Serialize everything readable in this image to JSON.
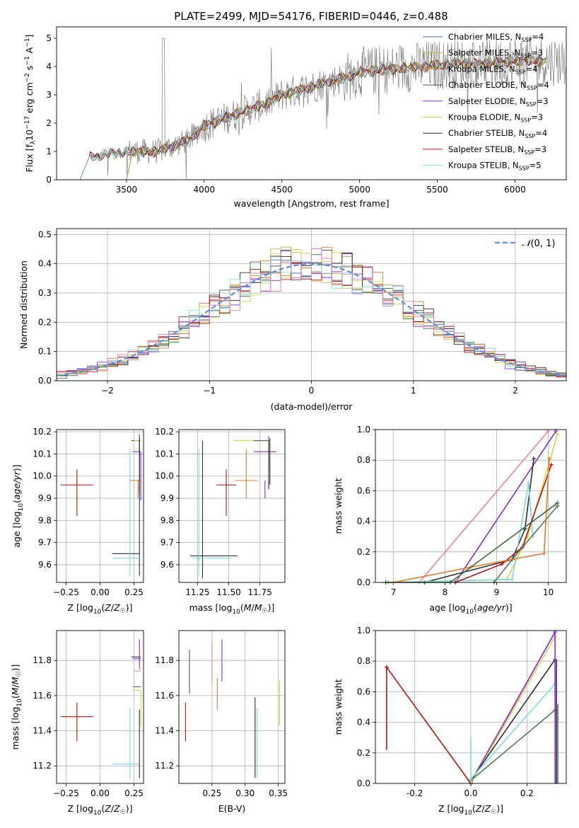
{
  "figure": {
    "title": "PLATE=2499, MJD=54176, FIBERID=0446, z=0.488"
  },
  "palette": {
    "c0": "#4466dd",
    "c1": "#bbbb33",
    "c2": "#e07a2a",
    "c3": "#3a6e3a",
    "c4": "#8a2be2",
    "c5": "#d0d840",
    "c6": "#303030",
    "c7": "#bb1111",
    "c8": "#7fd8e0",
    "pink": "#e87fb0",
    "olive": "#557755"
  },
  "chart_data": [
    {
      "id": "spectrum",
      "type": "line",
      "xlabel": "wavelength [Angstrom, rest frame]",
      "ylabel": "Flux [f_λ 10^-17 erg cm^-2 s^-1 A^-1]",
      "xlim": [
        3050,
        6330
      ],
      "ylim": [
        0,
        5.4
      ],
      "xticks": [
        3500,
        4000,
        4500,
        5000,
        5500,
        6000
      ],
      "yticks": [
        0,
        1,
        2,
        3,
        4,
        5
      ],
      "grid": false,
      "legend_position": "upper-right",
      "data_anchor": {
        "x": [
          3200,
          3260,
          3500,
          3700,
          3900,
          4000,
          4200,
          4400,
          4500,
          4700,
          4900,
          5000,
          5200,
          5400,
          5600,
          5800,
          6000,
          6200
        ],
        "y": [
          0.0,
          0.8,
          1.0,
          1.0,
          1.4,
          1.9,
          2.3,
          2.7,
          3.0,
          3.3,
          3.6,
          3.8,
          3.9,
          4.0,
          4.1,
          4.1,
          4.2,
          4.2
        ]
      },
      "series": [
        {
          "name": "Chabrier MILES, N_SSP=4",
          "label_main": "Chabrier MILES, N",
          "label_sub": "SSP",
          "label_tail": "=4",
          "color": "#4466dd"
        },
        {
          "name": "Salpeter MILES, N_SSP=3",
          "label_main": "Salpeter MILES, N",
          "label_sub": "SSP",
          "label_tail": "=3",
          "color": "#bbbb33"
        },
        {
          "name": "Kroupa MILES, N_SSP=4",
          "label_main": "Kroupa MILES, N",
          "label_sub": "SSP",
          "label_tail": "=4",
          "color": "#e07a2a"
        },
        {
          "name": "Chabrier ELODIE, N_SSP=4",
          "label_main": "Chabrier ELODIE, N",
          "label_sub": "SSP",
          "label_tail": "=4",
          "color": "#3a6e3a"
        },
        {
          "name": "Salpeter ELODIE, N_SSP=3",
          "label_main": "Salpeter ELODIE, N",
          "label_sub": "SSP",
          "label_tail": "=3",
          "color": "#8a2be2"
        },
        {
          "name": "Kroupa ELODIE, N_SSP=3",
          "label_main": "Kroupa ELODIE, N",
          "label_sub": "SSP",
          "label_tail": "=3",
          "color": "#d0d840"
        },
        {
          "name": "Chabrier STELIB, N_SSP=4",
          "label_main": "Chabrier STELIB, N",
          "label_sub": "SSP",
          "label_tail": "=4",
          "color": "#303030"
        },
        {
          "name": "Salpeter STELIB, N_SSP=3",
          "label_main": "Salpeter STELIB, N",
          "label_sub": "SSP",
          "label_tail": "=3",
          "color": "#bb1111"
        },
        {
          "name": "Kroupa STELIB, N_SSP=5",
          "label_main": "Kroupa STELIB, N",
          "label_sub": "SSP",
          "label_tail": "=5",
          "color": "#7fd8e0"
        }
      ]
    },
    {
      "id": "residuals",
      "type": "line",
      "xlabel": "(data-model)/error",
      "ylabel": "Normed distribution",
      "xlim": [
        -2.5,
        2.5
      ],
      "ylim": [
        0,
        0.52
      ],
      "xticks": [
        -2,
        -1,
        0,
        1,
        2
      ],
      "yticks": [
        0.0,
        0.1,
        0.2,
        0.3,
        0.4,
        0.5
      ],
      "grid": true,
      "legend_position": "upper-right",
      "legend_label": "N(0,1)",
      "legend_label_main": "𝒩",
      "legend_label_tail": "(0, 1)",
      "reference_curve": "normal",
      "bin_width": 0.1
    },
    {
      "id": "age_vs_Z",
      "type": "scatter",
      "xlabel": "Z [log10(Z/Z☉)]",
      "ylabel": "age [log10(age/yr)]",
      "xlim": [
        -0.32,
        0.32
      ],
      "ylim": [
        9.52,
        10.21
      ],
      "xticks": [
        -0.25,
        0.0,
        0.25
      ],
      "yticks": [
        9.6,
        9.7,
        9.8,
        9.9,
        10.0,
        10.1,
        10.2
      ],
      "grid": true,
      "points": [
        {
          "x": -0.17,
          "y": 9.96,
          "xerr": [
            0.12,
            0.12
          ],
          "yerr": [
            0.14,
            0.07
          ],
          "color": "#bb1111"
        },
        {
          "x": 0.27,
          "y": 10.16,
          "xerr": [
            0.04,
            0.03
          ],
          "yerr": [
            0.0,
            0.0
          ],
          "color": "#3a6e3a"
        },
        {
          "x": 0.28,
          "y": 10.16,
          "xerr": [
            0.03,
            0.02
          ],
          "yerr": [
            0.0,
            0.0
          ],
          "color": "#d0d840"
        },
        {
          "x": 0.29,
          "y": 10.11,
          "xerr": [
            0.05,
            0.01
          ],
          "yerr": [
            0.06,
            0.07
          ],
          "color": "#8a2be2"
        },
        {
          "x": 0.29,
          "y": 10.13,
          "xerr": [
            0.0,
            0.0
          ],
          "yerr": [
            0.2,
            0.06
          ],
          "color": "#3a6e3a"
        },
        {
          "x": 0.28,
          "y": 9.98,
          "xerr": [
            0.06,
            0.02
          ],
          "yerr": [
            0.08,
            0.0
          ],
          "color": "#e07a2a"
        },
        {
          "x": 0.3,
          "y": 10.0,
          "xerr": [
            0.0,
            0.0
          ],
          "yerr": [
            0.11,
            0.11
          ],
          "color": "#8a2be2"
        },
        {
          "x": 0.29,
          "y": 9.65,
          "xerr": [
            0.2,
            0.0
          ],
          "yerr": [
            0.1,
            0.52
          ],
          "color": "#303030"
        },
        {
          "x": 0.22,
          "y": 9.63,
          "xerr": [
            0.13,
            0.07
          ],
          "yerr": [
            0.08,
            0.49
          ],
          "color": "#7fd8e0"
        }
      ]
    },
    {
      "id": "age_vs_mass",
      "type": "scatter",
      "xlabel": "mass [log10(M/M☉)]",
      "ylabel": "",
      "xlim": [
        11.1,
        11.95
      ],
      "ylim": [
        9.52,
        10.21
      ],
      "xticks": [
        11.25,
        11.5,
        11.75
      ],
      "yticks": [
        9.6,
        9.7,
        9.8,
        9.9,
        10.0,
        10.1,
        10.2
      ],
      "grid": true,
      "points": [
        {
          "x": 11.48,
          "y": 9.96,
          "xerr": [
            0.08,
            0.08
          ],
          "yerr": [
            0.14,
            0.07
          ],
          "color": "#bb1111"
        },
        {
          "x": 11.29,
          "y": 9.64,
          "xerr": [
            0.1,
            0.28
          ],
          "yerr": [
            0.1,
            0.52
          ],
          "color": "#303030"
        },
        {
          "x": 11.26,
          "y": 9.63,
          "xerr": [
            0.05,
            0.26
          ],
          "yerr": [
            0.08,
            0.49
          ],
          "color": "#7fd8e0"
        },
        {
          "x": 11.68,
          "y": 10.16,
          "xerr": [
            0.14,
            0.07
          ],
          "yerr": [
            0.0,
            0.0
          ],
          "color": "#d0d840"
        },
        {
          "x": 11.76,
          "y": 10.16,
          "xerr": [
            0.06,
            0.06
          ],
          "yerr": [
            0.0,
            0.0
          ],
          "color": "#3a6e3a"
        },
        {
          "x": 11.82,
          "y": 10.11,
          "xerr": [
            0.12,
            0.06
          ],
          "yerr": [
            0.06,
            0.07
          ],
          "color": "#8a2be2"
        },
        {
          "x": 11.82,
          "y": 10.1,
          "xerr": [
            0.0,
            0.0
          ],
          "yerr": [
            0.16,
            0.06
          ],
          "color": "#303030"
        },
        {
          "x": 11.64,
          "y": 9.98,
          "xerr": [
            0.09,
            0.09
          ],
          "yerr": [
            0.08,
            0.14
          ],
          "color": "#e07a2a"
        },
        {
          "x": 11.79,
          "y": 9.98,
          "xerr": [
            0.0,
            0.0
          ],
          "yerr": [
            0.08,
            0.0
          ],
          "color": "#8a2be2"
        },
        {
          "x": 11.83,
          "y": 10.15,
          "xerr": [
            0.0,
            0.0
          ],
          "yerr": [
            0.19,
            0.02
          ],
          "color": "#303030"
        }
      ]
    },
    {
      "id": "weight_vs_age",
      "type": "line",
      "xlabel": "age [log10(age/yr)]",
      "ylabel": "mass weight",
      "xlim": [
        6.65,
        10.35
      ],
      "ylim": [
        0,
        1.0
      ],
      "xticks": [
        7,
        8,
        9,
        10
      ],
      "yticks": [
        0.0,
        0.2,
        0.4,
        0.6,
        0.8,
        1.0
      ],
      "grid": true,
      "series": [
        {
          "color": "#e87fb0",
          "x": [
            7.5,
            10.0
          ],
          "y": [
            0.0,
            0.99
          ]
        },
        {
          "color": "#8a2be2",
          "x": [
            8.2,
            10.15
          ],
          "y": [
            0.0,
            0.99
          ]
        },
        {
          "color": "#d0d840",
          "x": [
            6.9,
            9.2,
            9.6,
            10.18
          ],
          "y": [
            0.0,
            0.02,
            0.3,
            0.97
          ]
        },
        {
          "color": "#303030",
          "x": [
            7.6,
            9.3,
            9.55,
            9.72
          ],
          "y": [
            0.0,
            0.15,
            0.35,
            0.81
          ]
        },
        {
          "color": "#7fd8e0",
          "x": [
            6.9,
            9.3,
            9.62,
            9.7
          ],
          "y": [
            0.0,
            0.02,
            0.65,
            0.3
          ]
        },
        {
          "color": "#bb1111",
          "x": [
            8.2,
            9.1,
            9.5,
            10.06
          ],
          "y": [
            0.0,
            0.12,
            0.23,
            0.77
          ]
        },
        {
          "color": "#557755",
          "x": [
            8.95,
            9.3,
            10.18
          ],
          "y": [
            0.0,
            0.15,
            0.5
          ]
        },
        {
          "color": "#e07a2a",
          "x": [
            7.0,
            8.5,
            9.92,
            10.02
          ],
          "y": [
            0.0,
            0.1,
            0.19,
            0.81
          ]
        },
        {
          "color": "#3a6e3a",
          "x": [
            6.85,
            8.1,
            10.18
          ],
          "y": [
            0.0,
            0.0,
            0.52
          ]
        }
      ]
    },
    {
      "id": "mass_vs_Z",
      "type": "scatter",
      "xlabel": "Z [log10(Z/Z☉)]",
      "ylabel": "mass [log10(M/M☉)]",
      "xlim": [
        -0.32,
        0.32
      ],
      "ylim": [
        11.1,
        11.97
      ],
      "xticks": [
        -0.25,
        0.0,
        0.25
      ],
      "yticks": [
        11.2,
        11.4,
        11.6,
        11.8
      ],
      "grid": true,
      "points": [
        {
          "x": -0.17,
          "y": 11.48,
          "xerr": [
            0.12,
            0.12
          ],
          "yerr": [
            0.14,
            0.08
          ],
          "color": "#bb1111"
        },
        {
          "x": 0.27,
          "y": 11.82,
          "xerr": [
            0.04,
            0.03
          ],
          "yerr": [
            0.0,
            0.0
          ],
          "color": "#303030"
        },
        {
          "x": 0.29,
          "y": 11.81,
          "xerr": [
            0.05,
            0.01
          ],
          "yerr": [
            0.06,
            0.11
          ],
          "color": "#8a2be2"
        },
        {
          "x": 0.28,
          "y": 11.74,
          "xerr": [
            0.03,
            0.02
          ],
          "yerr": [
            0.0,
            0.0
          ],
          "color": "#e87fb0"
        },
        {
          "x": 0.27,
          "y": 11.65,
          "xerr": [
            0.03,
            0.03
          ],
          "yerr": [
            0.0,
            0.0
          ],
          "color": "#4466dd"
        },
        {
          "x": 0.28,
          "y": 11.63,
          "xerr": [
            0.04,
            0.02
          ],
          "yerr": [
            0.0,
            0.0
          ],
          "color": "#d0d840"
        },
        {
          "x": 0.3,
          "y": 11.52,
          "xerr": [
            0.0,
            0.0
          ],
          "yerr": [
            0.1,
            0.11
          ],
          "color": "#d0d840"
        },
        {
          "x": 0.22,
          "y": 11.21,
          "xerr": [
            0.13,
            0.07
          ],
          "yerr": [
            0.08,
            0.32
          ],
          "color": "#7fd8e0"
        },
        {
          "x": 0.29,
          "y": 11.2,
          "xerr": [
            0.0,
            0.0
          ],
          "yerr": [
            0.07,
            0.32
          ],
          "color": "#303030"
        }
      ]
    },
    {
      "id": "mass_vs_ebv",
      "type": "scatter",
      "xlabel": "E(B-V)",
      "ylabel": "",
      "xlim": [
        0.2,
        0.36
      ],
      "ylim": [
        11.1,
        11.97
      ],
      "xticks": [
        0.25,
        0.3,
        0.35
      ],
      "yticks": [
        11.2,
        11.4,
        11.6,
        11.8
      ],
      "grid": true,
      "points": [
        {
          "x": 0.21,
          "y": 11.45,
          "xerr": [
            0.0,
            0.0
          ],
          "yerr": [
            0.11,
            0.11
          ],
          "color": "#bb1111"
        },
        {
          "x": 0.216,
          "y": 11.74,
          "xerr": [
            0.0,
            0.0
          ],
          "yerr": [
            0.13,
            0.12
          ],
          "color": "#3a6e3a"
        },
        {
          "x": 0.25,
          "y": 11.78,
          "xerr": [
            0.0,
            0.0
          ],
          "yerr": [
            0.1,
            0.12
          ],
          "color": "#e87fb0"
        },
        {
          "x": 0.258,
          "y": 11.6,
          "xerr": [
            0.0,
            0.0
          ],
          "yerr": [
            0.08,
            0.1
          ],
          "color": "#e07a2a"
        },
        {
          "x": 0.265,
          "y": 11.78,
          "xerr": [
            0.0,
            0.0
          ],
          "yerr": [
            0.1,
            0.14
          ],
          "color": "#8a2be2"
        },
        {
          "x": 0.315,
          "y": 11.35,
          "xerr": [
            0.0,
            0.0
          ],
          "yerr": [
            0.22,
            0.24
          ],
          "color": "#303030"
        },
        {
          "x": 0.318,
          "y": 11.33,
          "xerr": [
            0.0,
            0.0
          ],
          "yerr": [
            0.2,
            0.2
          ],
          "color": "#7fd8e0"
        },
        {
          "x": 0.352,
          "y": 11.55,
          "xerr": [
            0.0,
            0.0
          ],
          "yerr": [
            0.12,
            0.14
          ],
          "color": "#d0d840"
        }
      ]
    },
    {
      "id": "weight_vs_Z",
      "type": "line",
      "xlabel": "Z [log10(Z/Z☉)]",
      "ylabel": "mass weight",
      "xlim": [
        -0.34,
        0.34
      ],
      "ylim": [
        0,
        1.0
      ],
      "xticks": [
        -0.2,
        0.0,
        0.2
      ],
      "yticks": [
        0.0,
        0.2,
        0.4,
        0.6,
        0.8,
        1.0
      ],
      "grid": true,
      "series": [
        {
          "color": "#e87fb0",
          "x": [
            0.0,
            0.3
          ],
          "y": [
            0.0,
            0.99
          ]
        },
        {
          "color": "#8a2be2",
          "x": [
            0.0,
            0.3
          ],
          "y": [
            0.01,
            0.99
          ]
        },
        {
          "color": "#d0d840",
          "x": [
            0.0,
            0.3
          ],
          "y": [
            0.0,
            0.96
          ]
        },
        {
          "color": "#303030",
          "x": [
            0.0,
            0.3
          ],
          "y": [
            0.02,
            0.81
          ]
        },
        {
          "color": "#557755",
          "x": [
            0.0,
            0.3
          ],
          "y": [
            0.02,
            0.48
          ]
        },
        {
          "color": "#7fd8e0",
          "x": [
            0.0,
            0.3
          ],
          "y": [
            0.03,
            0.65
          ]
        },
        {
          "color": "#bb1111",
          "x": [
            -0.3,
            0.0
          ],
          "y": [
            0.76,
            0.0
          ]
        }
      ],
      "vertical_bars": [
        {
          "x": -0.3,
          "y": [
            0.22,
            0.76
          ],
          "color": "#bb1111"
        },
        {
          "x": 0.0,
          "y": [
            0.0,
            0.3
          ],
          "color": "#7fd8e0"
        },
        {
          "x": 0.3,
          "y": [
            0.0,
            0.99
          ],
          "color": "#8a2be2"
        },
        {
          "x": 0.305,
          "y": [
            0.0,
            0.81
          ],
          "color": "#303030"
        },
        {
          "x": 0.31,
          "y": [
            0.0,
            0.52
          ],
          "color": "#557755"
        }
      ]
    }
  ]
}
